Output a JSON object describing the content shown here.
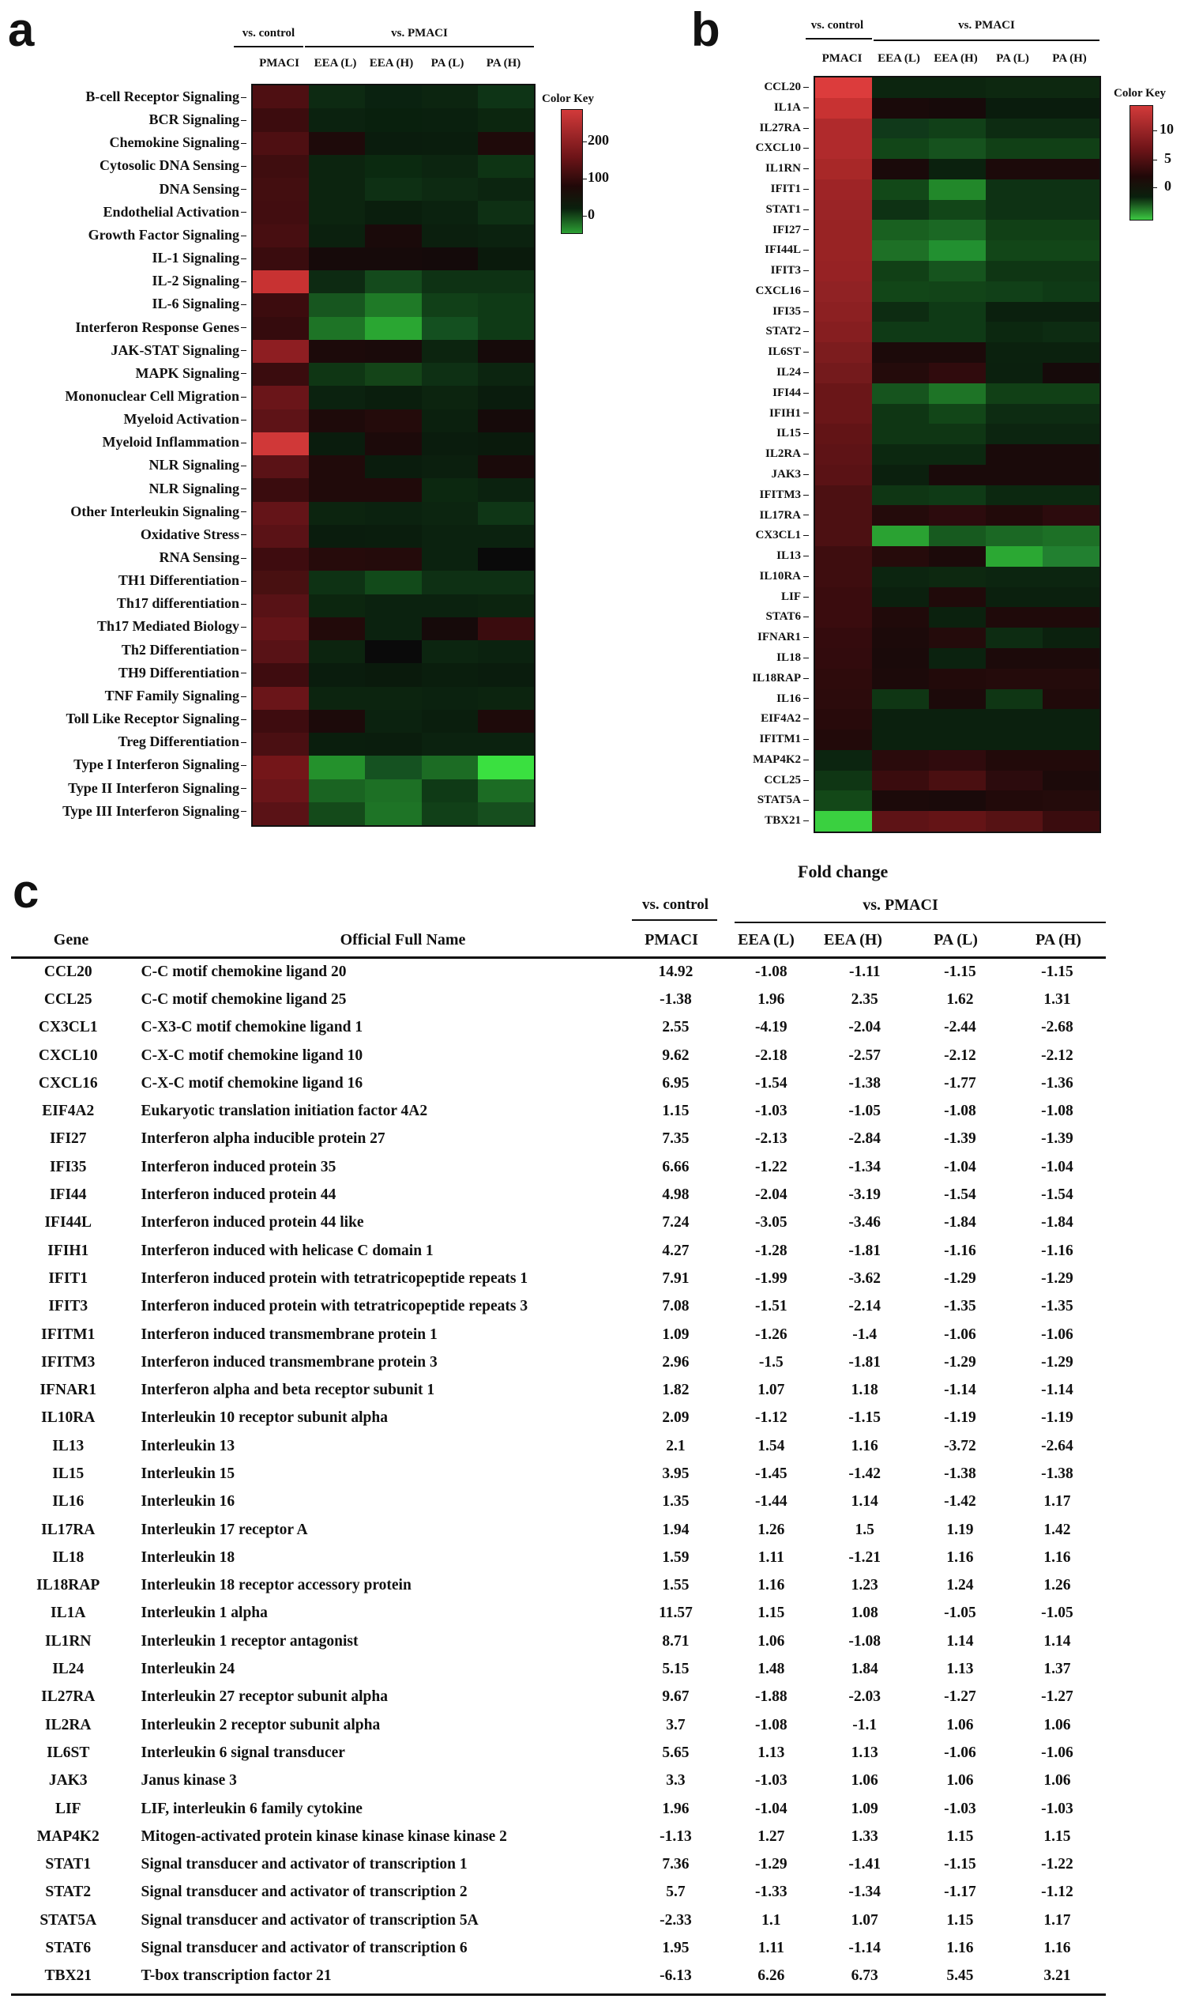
{
  "panels": {
    "a": "a",
    "b": "b",
    "c": "c"
  },
  "panel_a": {
    "group_control": "vs. control",
    "group_pmaci": "vs. PMACI",
    "columns": [
      "PMACI",
      "EEA (L)",
      "EEA (H)",
      "PA (L)",
      "PA (H)"
    ],
    "rows": [
      "B-cell Receptor Signaling",
      "BCR Signaling",
      "Chemokine Signaling",
      "Cytosolic DNA Sensing",
      "DNA Sensing",
      "Endothelial Activation",
      "Growth Factor Signaling",
      "IL-1 Signaling",
      "IL-2 Signaling",
      "IL-6 Signaling",
      "Interferon Response Genes",
      "JAK-STAT Signaling",
      "MAPK Signaling",
      "Mononuclear Cell Migration",
      "Myeloid Activation",
      "Myeloid Inflammation",
      "NLR Signaling",
      "NLR Signaling",
      "Other Interleukin Signaling",
      "Oxidative Stress",
      "RNA Sensing",
      "TH1 Differentiation",
      "Th17 differentiation",
      "Th17 Mediated Biology",
      "Th2 Differentiation",
      "TH9 Differentiation",
      "TNF Family Signaling",
      "Toll Like Receptor Signaling",
      "Treg Differentiation",
      "Type I Interferon Signaling",
      "Type II Interferon Signaling",
      "Type III Interferon Signaling"
    ],
    "colors": [
      [
        "#4e0f12",
        "#0d2a12",
        "#0a2210",
        "#0c2510",
        "#0e3416"
      ],
      [
        "#3c0c0e",
        "#0b220f",
        "#09200d",
        "#0a200e",
        "#0c260f"
      ],
      [
        "#4e0f12",
        "#1e0a0a",
        "#0a1c0d",
        "#0a1d0d",
        "#1f0a0a"
      ],
      [
        "#3f0d0f",
        "#0c240f",
        "#0b2a10",
        "#0c2510",
        "#0e3414"
      ],
      [
        "#430e10",
        "#0c240f",
        "#0e3014",
        "#0d2a12",
        "#0c2510"
      ],
      [
        "#420d10",
        "#0c240f",
        "#0a1e0d",
        "#0b220f",
        "#0e3014"
      ],
      [
        "#470e11",
        "#0b200e",
        "#1a0a0a",
        "#0b1f0e",
        "#0b220f"
      ],
      [
        "#3a0c0e",
        "#160a0a",
        "#160a0a",
        "#140a0a",
        "#0a1a0c"
      ],
      [
        "#c83232",
        "#0d2a12",
        "#144a1c",
        "#0e3214",
        "#0e3214"
      ],
      [
        "#3c0c0e",
        "#17561f",
        "#1f7a27",
        "#114018",
        "#0f3a16"
      ],
      [
        "#350b0d",
        "#1e7426",
        "#2aa632",
        "#145020",
        "#0f3a16"
      ],
      [
        "#8e1e22",
        "#1c0a0a",
        "#1a0a0a",
        "#0c240f",
        "#160a0a"
      ],
      [
        "#3a0c0e",
        "#0f3614",
        "#144418",
        "#0e3014",
        "#0c2510"
      ],
      [
        "#6a1519",
        "#0b220f",
        "#0a1e0d",
        "#0c240f",
        "#0a1c0d"
      ],
      [
        "#5e1317",
        "#1e0a0a",
        "#240b0b",
        "#0b200e",
        "#160a0a"
      ],
      [
        "#d03838",
        "#0a1c0d",
        "#1c0a0a",
        "#0a1c0d",
        "#0a1a0c"
      ],
      [
        "#5a1216",
        "#200a0a",
        "#0a1c0d",
        "#0b1f0e",
        "#1a0a0a"
      ],
      [
        "#3a0c0e",
        "#200a0a",
        "#200a0a",
        "#0c2810",
        "#0b220f"
      ],
      [
        "#641418",
        "#0c240f",
        "#0b220f",
        "#0c2510",
        "#0f3616"
      ],
      [
        "#5a1216",
        "#0a1c0d",
        "#0a1d0d",
        "#0b220f",
        "#0b220f"
      ],
      [
        "#3e0c0f",
        "#260b0b",
        "#240b0b",
        "#0b220f",
        "#0a0a0a"
      ],
      [
        "#481011",
        "#0e3214",
        "#124a1a",
        "#0e3014",
        "#0e3014"
      ],
      [
        "#581216",
        "#0c260f",
        "#0b220f",
        "#0b220f",
        "#0c240f"
      ],
      [
        "#641418",
        "#220a0a",
        "#0b220f",
        "#160a0a",
        "#3a0c0e"
      ],
      [
        "#581216",
        "#0c240f",
        "#0a0a0a",
        "#0c2510",
        "#0b220f"
      ],
      [
        "#3e0c0f",
        "#0a1c0d",
        "#0a1a0c",
        "#0a1e0d",
        "#0a1c0d"
      ],
      [
        "#6a1519",
        "#0c240f",
        "#0c240f",
        "#0b220f",
        "#0c240f"
      ],
      [
        "#3e0c0f",
        "#1c0a0a",
        "#0b220f",
        "#0a1e0d",
        "#1e0a0a"
      ],
      [
        "#4a0f12",
        "#0a1e0d",
        "#0a1d0d",
        "#0b220f",
        "#0b220f"
      ],
      [
        "#741619",
        "#24912c",
        "#155221",
        "#1c6c24",
        "#3ae040"
      ],
      [
        "#6a1519",
        "#1a6422",
        "#1d7025",
        "#0f3a16",
        "#1c6c24"
      ],
      [
        "#5a1216",
        "#144a1a",
        "#1e7426",
        "#114018",
        "#164e1e"
      ]
    ],
    "color_key": {
      "title": "Color Key",
      "ticks": [
        "200",
        "100",
        "0"
      ]
    }
  },
  "panel_b": {
    "group_control": "vs. control",
    "group_pmaci": "vs. PMACI",
    "columns": [
      "PMACI",
      "EEA (L)",
      "EEA (H)",
      "PA (L)",
      "PA (H)"
    ],
    "rows": [
      "CCL20",
      "IL1A",
      "IL27RA",
      "CXCL10",
      "IL1RN",
      "IFIT1",
      "STAT1",
      "IFI27",
      "IFI44L",
      "IFIT3",
      "CXCL16",
      "IFI35",
      "STAT2",
      "IL6ST",
      "IL24",
      "IFI44",
      "IFIH1",
      "IL15",
      "IL2RA",
      "JAK3",
      "IFITM3",
      "IL17RA",
      "CX3CL1",
      "IL13",
      "IL10RA",
      "LIF",
      "STAT6",
      "IFNAR1",
      "IL18",
      "IL18RAP",
      "IL16",
      "EIF4A2",
      "IFITM1",
      "MAP4K2",
      "CCL25",
      "STAT5A",
      "TBX21"
    ],
    "colors": [
      [
        "#dc3c3c",
        "#0c250f",
        "#0c250f",
        "#0d2810",
        "#0d2810"
      ],
      [
        "#c83232",
        "#1a0a0a",
        "#170a0a",
        "#0a1c0d",
        "#0a1c0d"
      ],
      [
        "#b02a2c",
        "#10391a",
        "#114018",
        "#0d2c12",
        "#0d2c12"
      ],
      [
        "#b02a2c",
        "#124618",
        "#16521e",
        "#114016",
        "#114016"
      ],
      [
        "#a82828",
        "#1a0a0a",
        "#0b210e",
        "#1c0a0a",
        "#1c0a0a"
      ],
      [
        "#9e2426",
        "#124818",
        "#22882a",
        "#0e3214",
        "#0e3214"
      ],
      [
        "#9a2426",
        "#0e3214",
        "#124618",
        "#0e3214",
        "#0e3214"
      ],
      [
        "#982324",
        "#196020",
        "#1b6824",
        "#114016",
        "#114016"
      ],
      [
        "#982324",
        "#1e7026",
        "#229030",
        "#124618",
        "#124618"
      ],
      [
        "#962224",
        "#114016",
        "#16541e",
        "#0f3614",
        "#0f3614"
      ],
      [
        "#902224",
        "#124618",
        "#124418",
        "#114018",
        "#0f3a16"
      ],
      [
        "#8c2022",
        "#0d2c12",
        "#0f3a16",
        "#0b200e",
        "#0b200e"
      ],
      [
        "#861e20",
        "#0f3a16",
        "#0f3a16",
        "#0c2810",
        "#0d2c12"
      ],
      [
        "#7c1c1e",
        "#1c0a0a",
        "#1c0a0a",
        "#0b210e",
        "#0b210e"
      ],
      [
        "#741a1c",
        "#240b0b",
        "#300b0d",
        "#0b200e",
        "#160a0a"
      ],
      [
        "#6a1618",
        "#16541e",
        "#1e7426",
        "#114016",
        "#114016"
      ],
      [
        "#6a1618",
        "#0f3614",
        "#124618",
        "#0d2c12",
        "#0d2c12"
      ],
      [
        "#621416",
        "#0f3614",
        "#0f3614",
        "#0c2510",
        "#0c2510"
      ],
      [
        "#5e1316",
        "#0c2810",
        "#0c2810",
        "#1a0a0a",
        "#1a0a0a"
      ],
      [
        "#5a1215",
        "#0b200e",
        "#1a0a0a",
        "#1a0a0a",
        "#1a0a0a"
      ],
      [
        "#4c1012",
        "#0f3614",
        "#0f3a16",
        "#0c2810",
        "#0c2810"
      ],
      [
        "#4c1012",
        "#240b0b",
        "#2c0b0d",
        "#220a0a",
        "#2c0b0d"
      ],
      [
        "#4c1012",
        "#2aa232",
        "#175a1f",
        "#1b6824",
        "#1d7026"
      ],
      [
        "#3e0d0f",
        "#260b0b",
        "#1c0a0a",
        "#2ba833",
        "#228030"
      ],
      [
        "#3e0d0f",
        "#0c2510",
        "#0d2810",
        "#0c2510",
        "#0c2510"
      ],
      [
        "#3a0c0e",
        "#0b200e",
        "#200a0a",
        "#0b200e",
        "#0b200e"
      ],
      [
        "#3a0c0e",
        "#200a0a",
        "#0b210e",
        "#1f0a0a",
        "#1f0a0a"
      ],
      [
        "#340b0d",
        "#1c0a0a",
        "#240b0b",
        "#0d2c12",
        "#0b210e"
      ],
      [
        "#320b0d",
        "#1a0a0a",
        "#0b220f",
        "#1c0a0a",
        "#1c0a0a"
      ],
      [
        "#2e0b0c",
        "#1c0a0a",
        "#220a0a",
        "#240b0b",
        "#240b0b"
      ],
      [
        "#2c0b0c",
        "#0f3614",
        "#1c0a0a",
        "#0f3614",
        "#200a0a"
      ],
      [
        "#280a0b",
        "#0b200e",
        "#0b200e",
        "#0b200e",
        "#0b200e"
      ],
      [
        "#220a0a",
        "#0b210e",
        "#0b210e",
        "#0b210e",
        "#0b210e"
      ],
      [
        "#0c2510",
        "#2a0b0c",
        "#300b0d",
        "#220a0a",
        "#220a0a"
      ],
      [
        "#0f3614",
        "#3a0c0e",
        "#4a0f11",
        "#2c0b0d",
        "#1c0a0a"
      ],
      [
        "#134818",
        "#1c0a0a",
        "#1a0a0a",
        "#220a0a",
        "#240b0b"
      ],
      [
        "#3ad040",
        "#5e1316",
        "#641416",
        "#561214",
        "#3a0c0e"
      ]
    ],
    "color_key": {
      "title": "Color Key",
      "ticks": [
        "10",
        "5",
        "0"
      ]
    }
  },
  "panel_c": {
    "title": "Fold change",
    "group_control": "vs. control",
    "group_pmaci": "vs. PMACI",
    "headers": [
      "Gene",
      "Official Full Name",
      "PMACI",
      "EEA (L)",
      "EEA (H)",
      "PA (L)",
      "PA (H)"
    ],
    "rows": [
      [
        "CCL20",
        "C-C motif chemokine ligand 20",
        "14.92",
        "-1.08",
        "-1.11",
        "-1.15",
        "-1.15"
      ],
      [
        "CCL25",
        "C-C motif chemokine ligand 25",
        "-1.38",
        "1.96",
        "2.35",
        "1.62",
        "1.31"
      ],
      [
        "CX3CL1",
        "C-X3-C motif chemokine ligand 1",
        "2.55",
        "-4.19",
        "-2.04",
        "-2.44",
        "-2.68"
      ],
      [
        "CXCL10",
        "C-X-C motif chemokine ligand 10",
        "9.62",
        "-2.18",
        "-2.57",
        "-2.12",
        "-2.12"
      ],
      [
        "CXCL16",
        "C-X-C motif chemokine ligand 16",
        "6.95",
        "-1.54",
        "-1.38",
        "-1.77",
        "-1.36"
      ],
      [
        "EIF4A2",
        "Eukaryotic translation initiation factor 4A2",
        "1.15",
        "-1.03",
        "-1.05",
        "-1.08",
        "-1.08"
      ],
      [
        "IFI27",
        "Interferon alpha inducible protein 27",
        "7.35",
        "-2.13",
        "-2.84",
        "-1.39",
        "-1.39"
      ],
      [
        "IFI35",
        "Interferon induced protein 35",
        "6.66",
        "-1.22",
        "-1.34",
        "-1.04",
        "-1.04"
      ],
      [
        "IFI44",
        "Interferon induced protein 44",
        "4.98",
        "-2.04",
        "-3.19",
        "-1.54",
        "-1.54"
      ],
      [
        "IFI44L",
        "Interferon induced protein 44 like",
        "7.24",
        "-3.05",
        "-3.46",
        "-1.84",
        "-1.84"
      ],
      [
        "IFIH1",
        "Interferon induced with helicase C domain 1",
        "4.27",
        "-1.28",
        "-1.81",
        "-1.16",
        "-1.16"
      ],
      [
        "IFIT1",
        "Interferon induced protein with tetratricopeptide repeats 1",
        "7.91",
        "-1.99",
        "-3.62",
        "-1.29",
        "-1.29"
      ],
      [
        "IFIT3",
        "Interferon induced protein with tetratricopeptide repeats 3",
        "7.08",
        "-1.51",
        "-2.14",
        "-1.35",
        "-1.35"
      ],
      [
        "IFITM1",
        "Interferon induced transmembrane protein 1",
        "1.09",
        "-1.26",
        "-1.4",
        "-1.06",
        "-1.06"
      ],
      [
        "IFITM3",
        "Interferon induced transmembrane protein 3",
        "2.96",
        "-1.5",
        "-1.81",
        "-1.29",
        "-1.29"
      ],
      [
        "IFNAR1",
        "Interferon alpha and beta receptor subunit 1",
        "1.82",
        "1.07",
        "1.18",
        "-1.14",
        "-1.14"
      ],
      [
        "IL10RA",
        "Interleukin 10 receptor subunit alpha",
        "2.09",
        "-1.12",
        "-1.15",
        "-1.19",
        "-1.19"
      ],
      [
        "IL13",
        "Interleukin 13",
        "2.1",
        "1.54",
        "1.16",
        "-3.72",
        "-2.64"
      ],
      [
        "IL15",
        "Interleukin 15",
        "3.95",
        "-1.45",
        "-1.42",
        "-1.38",
        "-1.38"
      ],
      [
        "IL16",
        "Interleukin 16",
        "1.35",
        "-1.44",
        "1.14",
        "-1.42",
        "1.17"
      ],
      [
        "IL17RA",
        "Interleukin 17 receptor A",
        "1.94",
        "1.26",
        "1.5",
        "1.19",
        "1.42"
      ],
      [
        "IL18",
        "Interleukin 18",
        "1.59",
        "1.11",
        "-1.21",
        "1.16",
        "1.16"
      ],
      [
        "IL18RAP",
        "Interleukin 18 receptor accessory protein",
        "1.55",
        "1.16",
        "1.23",
        "1.24",
        "1.26"
      ],
      [
        "IL1A",
        "Interleukin 1 alpha",
        "11.57",
        "1.15",
        "1.08",
        "-1.05",
        "-1.05"
      ],
      [
        "IL1RN",
        "Interleukin 1 receptor antagonist",
        "8.71",
        "1.06",
        "-1.08",
        "1.14",
        "1.14"
      ],
      [
        "IL24",
        "Interleukin 24",
        "5.15",
        "1.48",
        "1.84",
        "1.13",
        "1.37"
      ],
      [
        "IL27RA",
        "Interleukin 27 receptor subunit alpha",
        "9.67",
        "-1.88",
        "-2.03",
        "-1.27",
        "-1.27"
      ],
      [
        "IL2RA",
        "Interleukin 2 receptor subunit alpha",
        "3.7",
        "-1.08",
        "-1.1",
        "1.06",
        "1.06"
      ],
      [
        "IL6ST",
        "Interleukin 6 signal transducer",
        "5.65",
        "1.13",
        "1.13",
        "-1.06",
        "-1.06"
      ],
      [
        "JAK3",
        "Janus kinase 3",
        "3.3",
        "-1.03",
        "1.06",
        "1.06",
        "1.06"
      ],
      [
        "LIF",
        "LIF, interleukin 6 family cytokine",
        "1.96",
        "-1.04",
        "1.09",
        "-1.03",
        "-1.03"
      ],
      [
        "MAP4K2",
        "Mitogen-activated protein kinase kinase kinase kinase 2",
        "-1.13",
        "1.27",
        "1.33",
        "1.15",
        "1.15"
      ],
      [
        "STAT1",
        "Signal transducer and activator of transcription 1",
        "7.36",
        "-1.29",
        "-1.41",
        "-1.15",
        "-1.22"
      ],
      [
        "STAT2",
        "Signal transducer and activator of transcription 2",
        "5.7",
        "-1.33",
        "-1.34",
        "-1.17",
        "-1.12"
      ],
      [
        "STAT5A",
        "Signal transducer and activator of transcription 5A",
        "-2.33",
        "1.1",
        "1.07",
        "1.15",
        "1.17"
      ],
      [
        "STAT6",
        "Signal transducer and activator of transcription 6",
        "1.95",
        "1.11",
        "-1.14",
        "1.16",
        "1.16"
      ],
      [
        "TBX21",
        "T-box transcription factor 21",
        "-6.13",
        "6.26",
        "6.73",
        "5.45",
        "3.21"
      ]
    ]
  }
}
